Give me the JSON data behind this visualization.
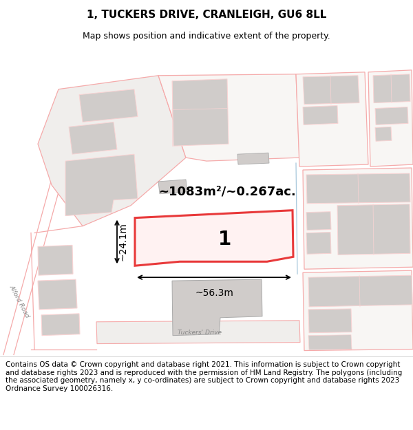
{
  "title": "1, TUCKERS DRIVE, CRANLEIGH, GU6 8LL",
  "subtitle": "Map shows position and indicative extent of the property.",
  "footer": "Contains OS data © Crown copyright and database right 2021. This information is subject to Crown copyright and database rights 2023 and is reproduced with the permission of HM Land Registry. The polygons (including the associated geometry, namely x, y co-ordinates) are subject to Crown copyright and database rights 2023 Ordnance Survey 100026316.",
  "area_label": "~1083m²/~0.267ac.",
  "width_label": "~56.3m",
  "height_label": "~24.1m",
  "plot_number": "1",
  "red_color": "#e8393a",
  "pink_color": "#f5aaaa",
  "pink_light": "#fad4d4",
  "gray_fill": "#d0ccca",
  "light_gray": "#e8e4e0",
  "white": "#ffffff",
  "blue_line": "#a8c8dc",
  "title_fontsize": 11,
  "subtitle_fontsize": 9,
  "footer_fontsize": 7.5,
  "map_bg": "#ffffff"
}
